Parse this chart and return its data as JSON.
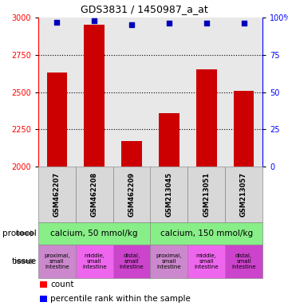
{
  "title": "GDS3831 / 1450987_a_at",
  "samples": [
    "GSM462207",
    "GSM462208",
    "GSM462209",
    "GSM213045",
    "GSM213051",
    "GSM213057"
  ],
  "bar_values": [
    2630,
    2950,
    2170,
    2360,
    2650,
    2510
  ],
  "percentile_values": [
    97,
    98,
    95,
    96,
    96,
    96
  ],
  "ylim_left": [
    2000,
    3000
  ],
  "ylim_right": [
    0,
    100
  ],
  "yticks_left": [
    2000,
    2250,
    2500,
    2750,
    3000
  ],
  "yticks_right": [
    0,
    25,
    50,
    75,
    100
  ],
  "bar_color": "#cc0000",
  "dot_color": "#0000bb",
  "protocol_labels": [
    "calcium, 50 mmol/kg",
    "calcium, 150 mmol/kg"
  ],
  "protocol_color": "#88ee88",
  "tissue_labels": [
    "proximal,\nsmall\nintestine",
    "middle,\nsmall\nintestine",
    "distal,\nsmall\nintestine",
    "proximal,\nsmall\nintestine",
    "middle,\nsmall\nintestine",
    "distal,\nsmall\nintestine"
  ],
  "tissue_colors": [
    "#cc88cc",
    "#ee66ee",
    "#cc44cc",
    "#cc88cc",
    "#ee66ee",
    "#cc44cc"
  ],
  "bg_color": "#e8e8e8",
  "plot_bg": "#ffffff",
  "fig_width": 3.61,
  "fig_height": 3.84,
  "dpi": 100
}
